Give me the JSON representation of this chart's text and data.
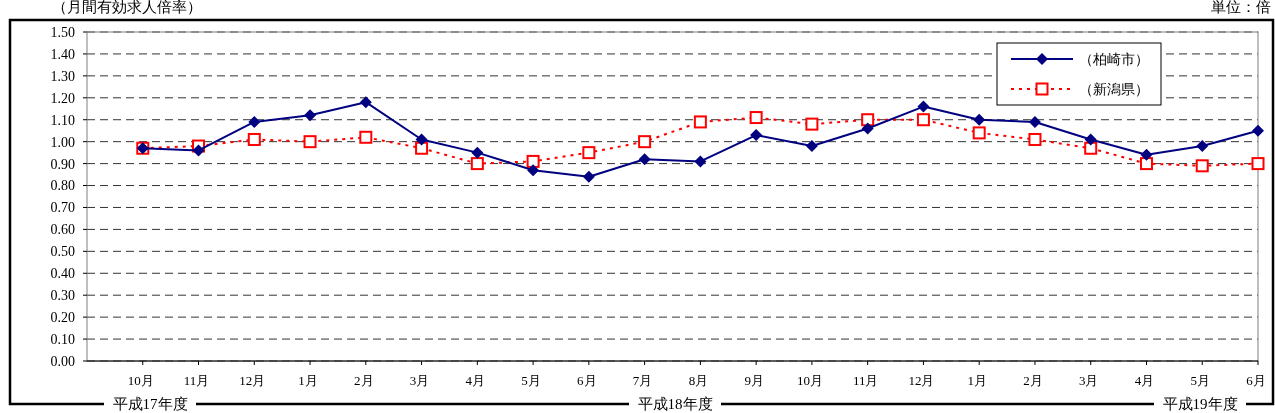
{
  "chart_data": {
    "type": "line",
    "title": "（月間有効求人倍率）",
    "subtitle": "単位：倍",
    "categories": [
      "10月",
      "11月",
      "12月",
      "1月",
      "2月",
      "3月",
      "4月",
      "5月",
      "6月",
      "7月",
      "8月",
      "9月",
      "10月",
      "11月",
      "12月",
      "1月",
      "2月",
      "3月",
      "4月",
      "5月",
      "6月"
    ],
    "series": [
      {
        "name": "（柏崎市）",
        "color": "#000080",
        "marker": "diamond",
        "line_style": "solid",
        "values": [
          0.97,
          0.96,
          1.09,
          1.12,
          1.18,
          1.01,
          0.95,
          0.87,
          0.84,
          0.92,
          0.91,
          1.03,
          0.98,
          1.06,
          1.16,
          1.1,
          1.09,
          1.01,
          0.94,
          0.98,
          1.05
        ]
      },
      {
        "name": "（新潟県）",
        "color": "#ff0000",
        "marker": "square",
        "line_style": "dotted",
        "values": [
          0.97,
          0.98,
          1.01,
          1.0,
          1.02,
          0.97,
          0.9,
          0.91,
          0.95,
          1.0,
          1.09,
          1.11,
          1.08,
          1.1,
          1.1,
          1.04,
          1.01,
          0.97,
          0.9,
          0.89,
          0.9
        ]
      }
    ],
    "ylim": [
      0,
      1.5
    ],
    "yticks": [
      {
        "value": 0,
        "label": "0.00"
      },
      {
        "value": 0.1,
        "label": "0.10"
      },
      {
        "value": 0.2,
        "label": "0.20"
      },
      {
        "value": 0.3,
        "label": "0.30"
      },
      {
        "value": 0.4,
        "label": "0.40"
      },
      {
        "value": 0.5,
        "label": "0.50"
      },
      {
        "value": 0.6,
        "label": "0.60"
      },
      {
        "value": 0.7,
        "label": "0.70"
      },
      {
        "value": 0.8,
        "label": "0.80"
      },
      {
        "value": 0.9,
        "label": "0.90"
      },
      {
        "value": 1.0,
        "label": "1.00"
      },
      {
        "value": 1.1,
        "label": "1.10"
      },
      {
        "value": 1.2,
        "label": "1.20"
      },
      {
        "value": 1.3,
        "label": "1.30"
      },
      {
        "value": 1.4,
        "label": "1.40"
      },
      {
        "value": 1.5,
        "label": "1.50"
      }
    ],
    "grid": "y",
    "legend": "top right",
    "annotations": [
      "平成17年度",
      "平成18年度",
      "平成19年度"
    ]
  }
}
